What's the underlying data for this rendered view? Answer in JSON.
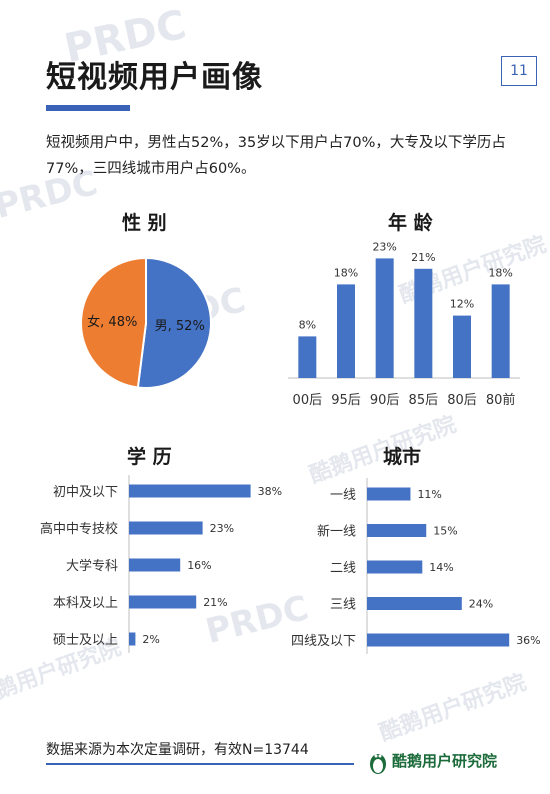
{
  "title": "短视频用户画像",
  "page_number": "11",
  "summary": "短视频用户中，男性占52%，35岁以下用户占70%，大专及以下学历占77%，三四线城市用户占60%。",
  "footer": {
    "source": "数据来源为本次定量调研，有效N=13744",
    "brand": "酷鹅用户研究院"
  },
  "watermarks": [
    "PRDC",
    "酷鹅用户研究院"
  ],
  "colors": {
    "blue": "#4472c4",
    "orange": "#ed7d31",
    "accent": "#3a63b8"
  },
  "chart_data": [
    {
      "type": "pie",
      "title": "性 别",
      "labels": [
        "男",
        "女"
      ],
      "values": [
        52,
        48
      ],
      "data_labels": [
        "男, 52%",
        "女, 48%"
      ],
      "colors": [
        "#4472c4",
        "#ed7d31"
      ]
    },
    {
      "type": "bar",
      "title": "年 龄",
      "categories": [
        "00后",
        "95后",
        "90后",
        "85后",
        "80后",
        "80前"
      ],
      "values": [
        8,
        18,
        23,
        21,
        12,
        18
      ],
      "data_labels": [
        "8%",
        "18%",
        "23%",
        "21%",
        "12%",
        "18%"
      ],
      "ylim": [
        0,
        25
      ]
    },
    {
      "type": "bar",
      "orientation": "horizontal",
      "title": "学 历",
      "categories": [
        "初中及以下",
        "高中中专技校",
        "大学专科",
        "本科及以上",
        "硕士及以上"
      ],
      "values": [
        38,
        23,
        16,
        21,
        2
      ],
      "data_labels": [
        "38%",
        "23%",
        "16%",
        "21%",
        "2%"
      ],
      "xlim": [
        0,
        40
      ]
    },
    {
      "type": "bar",
      "orientation": "horizontal",
      "title": "城市",
      "categories": [
        "一线",
        "新一线",
        "二线",
        "三线",
        "四线及以下"
      ],
      "values": [
        11,
        15,
        14,
        24,
        36
      ],
      "data_labels": [
        "11%",
        "15%",
        "14%",
        "24%",
        "36%"
      ],
      "xlim": [
        0,
        40
      ]
    }
  ]
}
